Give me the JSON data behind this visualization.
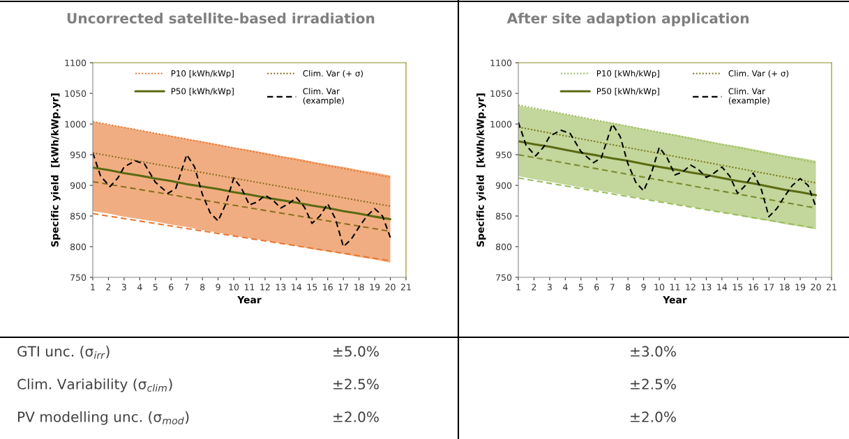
{
  "chart_data": [
    {
      "type": "line",
      "title": "Uncorrected satellite-based irradiation",
      "xlabel": "Year",
      "ylabel": "Specific yield  [kWh/kWp.yr]",
      "xlim": [
        1,
        21
      ],
      "xticks": [
        1,
        2,
        3,
        4,
        5,
        6,
        7,
        8,
        9,
        10,
        11,
        12,
        13,
        14,
        15,
        16,
        17,
        18,
        19,
        20,
        21
      ],
      "ylim": [
        750,
        1100
      ],
      "yticks": [
        750,
        800,
        850,
        900,
        950,
        1000,
        1050,
        1100
      ],
      "grid": false,
      "legend": "top",
      "series": [
        {
          "name": "P10 [kWh/kWp]",
          "color": "#e8772e",
          "line_style": "dotted",
          "x": [
            1,
            20
          ],
          "values": [
            1004,
            913
          ]
        },
        {
          "color": "#e8772e",
          "line_style": "dashed",
          "x": [
            1,
            20
          ],
          "values": [
            854,
            777
          ]
        },
        {
          "color": "#8a6f1e",
          "line_style": "dashed",
          "x": [
            1,
            20
          ],
          "values": [
            906,
            825
          ]
        },
        {
          "name": "Clim. Var (+ σ)",
          "color": "#8a6f1e",
          "line_style": "dotted",
          "x": [
            1,
            20
          ],
          "values": [
            953,
            866
          ]
        },
        {
          "name": "P50 [kWh/kWp]",
          "color": "#5a6a12",
          "line_style": "solid",
          "x": [
            1,
            2,
            3,
            4,
            5,
            6,
            7,
            8,
            9,
            10,
            11,
            12,
            13,
            14,
            15,
            16,
            17,
            18,
            19,
            20
          ],
          "values": [
            929,
            925,
            920,
            916,
            911,
            907,
            902,
            898,
            894,
            889,
            885,
            880,
            876,
            872,
            867,
            863,
            858,
            854,
            849,
            845
          ],
          "upper": [
            1004,
            999,
            995,
            990,
            985,
            981,
            976,
            972,
            967,
            962,
            958,
            953,
            948,
            944,
            939,
            934,
            930,
            925,
            921,
            916
          ],
          "lower": [
            858,
            854,
            849,
            845,
            841,
            836,
            832,
            827,
            823,
            818,
            814,
            810,
            805,
            801,
            796,
            792,
            788,
            783,
            779,
            774
          ]
        },
        {
          "name": "Clim. Var\n(example)",
          "color": "#000000",
          "line_style": "dashed",
          "x": [
            1,
            1.5,
            2.1,
            2.6,
            3,
            3.7,
            4.3,
            5,
            5.8,
            6.3,
            7,
            7.5,
            8,
            8.5,
            9,
            9.5,
            10,
            10.5,
            11,
            11.5,
            12,
            12.5,
            13,
            13.5,
            14,
            14.5,
            15,
            15.5,
            16,
            16.5,
            17,
            17.5,
            18,
            18.5,
            19,
            19.5,
            20
          ],
          "values": [
            953,
            915,
            898,
            912,
            930,
            940,
            935,
            905,
            887,
            895,
            950,
            930,
            885,
            855,
            842,
            870,
            912,
            895,
            868,
            873,
            884,
            876,
            863,
            870,
            880,
            865,
            838,
            850,
            870,
            845,
            800,
            812,
            832,
            850,
            862,
            850,
            815
          ]
        }
      ],
      "annotations": [
        "GTI unc. (σ$_{irr}$)",
        "±5.0%",
        "Clim. Variability (σ$_{clim}$)",
        "±2.5%",
        "PV modelling unc. (σ$_{mod}$)",
        "±2.0%"
      ]
    },
    {
      "type": "line",
      "title": "After site adaption application",
      "xlabel": "Year",
      "ylabel": "Specific yield  [kWh/kWp.yr]",
      "xlim": [
        1,
        21
      ],
      "xticks": [
        1,
        2,
        3,
        4,
        5,
        6,
        7,
        8,
        9,
        10,
        11,
        12,
        13,
        14,
        15,
        16,
        17,
        18,
        19,
        20,
        21
      ],
      "ylim": [
        750,
        1100
      ],
      "yticks": [
        750,
        800,
        850,
        900,
        950,
        1000,
        1050,
        1100
      ],
      "grid": false,
      "legend": "top",
      "series": [
        {
          "name": "P10 [kWh/kWp]",
          "color": "#9bbb59",
          "line_style": "dotted",
          "x": [
            1,
            20
          ],
          "values": [
            1031,
            937
          ]
        },
        {
          "color": "#9bbb59",
          "line_style": "dashed",
          "x": [
            1,
            20
          ],
          "values": [
            912,
            830
          ]
        },
        {
          "color": "#7a8a30",
          "line_style": "dashed",
          "x": [
            1,
            20
          ],
          "values": [
            950,
            863
          ]
        },
        {
          "name": "Clim. Var (+ σ)",
          "color": "#7a7a20",
          "line_style": "dotted",
          "x": [
            1,
            20
          ],
          "values": [
            995,
            904
          ]
        },
        {
          "name": "P50 [kWh/kWp]",
          "color": "#5a6a12",
          "line_style": "solid",
          "x": [
            1,
            2,
            3,
            4,
            5,
            6,
            7,
            8,
            9,
            10,
            11,
            12,
            13,
            14,
            15,
            16,
            17,
            18,
            19,
            20
          ],
          "values": [
            972,
            967,
            963,
            958,
            953,
            949,
            944,
            940,
            935,
            930,
            926,
            921,
            917,
            912,
            907,
            903,
            898,
            893,
            889,
            884
          ],
          "upper": [
            1030,
            1025,
            1021,
            1016,
            1011,
            1006,
            1002,
            997,
            992,
            987,
            983,
            978,
            973,
            968,
            964,
            959,
            954,
            949,
            945,
            940
          ],
          "lower": [
            915,
            910,
            906,
            901,
            897,
            892,
            888,
            883,
            878,
            874,
            869,
            865,
            860,
            856,
            851,
            846,
            842,
            837,
            833,
            828
          ]
        },
        {
          "name": "Clim. Var\n(example)",
          "color": "#000000",
          "line_style": "dashed",
          "x": [
            1,
            1.5,
            2.1,
            2.6,
            3,
            3.7,
            4.3,
            5,
            5.8,
            6.3,
            7,
            7.5,
            8,
            8.5,
            9,
            9.5,
            10,
            10.5,
            11,
            11.5,
            12,
            12.5,
            13,
            13.5,
            14,
            14.5,
            15,
            15.5,
            16,
            16.5,
            17,
            17.5,
            18,
            18.5,
            19,
            19.5,
            20
          ],
          "values": [
            1003,
            965,
            948,
            962,
            980,
            990,
            985,
            955,
            937,
            945,
            1000,
            980,
            935,
            905,
            891,
            920,
            962,
            945,
            917,
            922,
            933,
            926,
            913,
            920,
            930,
            915,
            887,
            900,
            920,
            895,
            849,
            862,
            882,
            900,
            911,
            900,
            865
          ]
        }
      ],
      "annotations": [
        "±3.0%",
        "±2.5%",
        "±2.0%"
      ]
    }
  ]
}
